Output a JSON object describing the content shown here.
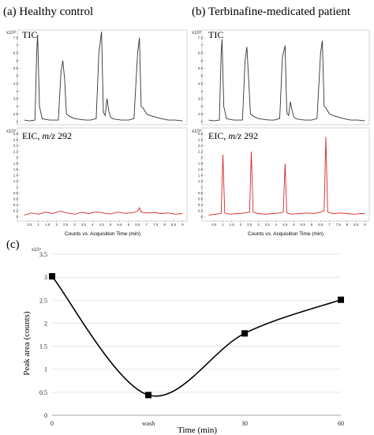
{
  "panels": [
    {
      "label": "(a) Healthy control",
      "tic": {
        "label": "TIC",
        "y_multiplier": "x10⁸",
        "y_ticks": [
          "2",
          "2.5",
          "3",
          "3.5",
          "4",
          "4.5",
          "5",
          "5.5",
          "6",
          "6.5",
          "7",
          "7.5"
        ],
        "ylim": [
          1.9,
          7.8
        ]
      },
      "eic": {
        "label_prefix": "EIC, ",
        "label_mz": "m/z",
        "label_value": " 292",
        "y_multiplier": "x10⁶",
        "y_ticks": [
          "0",
          "0.2",
          "0.4",
          "0.6",
          "0.8",
          "1",
          "1.2",
          "1.4",
          "1.6",
          "1.8",
          "2",
          "2.2",
          "2.4",
          "2.6",
          "2.8"
        ],
        "ylim": [
          -0.1,
          2.9
        ]
      },
      "x_ticks": [
        "0.5",
        "1",
        "1.5",
        "2",
        "2.5",
        "3",
        "3.5",
        "4",
        "4.5",
        "5",
        "5.5",
        "6",
        "6.5",
        "7",
        "7.5",
        "8",
        "8.5",
        "9"
      ],
      "xlabel": "Counts vs. Acquisition Time (min)"
    },
    {
      "label": "(b) Terbinafine-medicated patient",
      "tic": {
        "label": "TIC",
        "y_multiplier": "x10⁸",
        "y_ticks": [
          "2",
          "2.5",
          "3",
          "3.5",
          "4",
          "4.5",
          "5",
          "5.5",
          "6",
          "6.5",
          "7",
          "7.5"
        ],
        "ylim": [
          1.9,
          7.8
        ]
      },
      "eic": {
        "label_prefix": "EIC, ",
        "label_mz": "m/z",
        "label_value": " 292",
        "y_multiplier": "x10⁶",
        "y_ticks": [
          "0",
          "0.2",
          "0.4",
          "0.6",
          "0.8",
          "1",
          "1.2",
          "1.4",
          "1.6",
          "1.8",
          "2",
          "2.2",
          "2.4",
          "2.6",
          "2.8"
        ],
        "ylim": [
          -0.1,
          2.9
        ]
      },
      "x_ticks": [
        "0.5",
        "1",
        "1.5",
        "2",
        "2.5",
        "3",
        "3.5",
        "4",
        "4.5",
        "5",
        "5.5",
        "6",
        "6.5",
        "7",
        "7.5",
        "8",
        "8.5",
        "9"
      ],
      "xlabel": "Counts vs. Acquisition Time (min)"
    },
    {
      "label": "(c)"
    }
  ],
  "chart_data": [
    {
      "type": "line",
      "panel": "a",
      "trace": "TIC",
      "x": [
        0.2,
        0.5,
        0.8,
        0.9,
        0.95,
        1.05,
        1.2,
        1.4,
        1.6,
        1.9,
        2.1,
        2.25,
        2.35,
        2.45,
        2.55,
        2.8,
        3.0,
        3.3,
        3.6,
        3.9,
        4.2,
        4.35,
        4.5,
        4.6,
        4.7,
        4.8,
        4.9,
        5.0,
        5.1,
        5.3,
        5.6,
        6.0,
        6.3,
        6.5,
        6.6,
        6.7,
        6.8,
        6.9,
        7.0,
        7.2,
        7.5,
        7.8,
        8.2,
        8.6,
        9.0
      ],
      "y": [
        2.1,
        2.05,
        2.1,
        6.5,
        7.7,
        3.0,
        2.2,
        2.15,
        2.1,
        2.1,
        2.1,
        5.3,
        6.0,
        4.8,
        2.5,
        2.3,
        2.2,
        2.15,
        2.1,
        2.1,
        2.2,
        6.5,
        7.9,
        2.6,
        2.4,
        3.5,
        2.7,
        2.3,
        2.2,
        2.15,
        2.1,
        2.1,
        2.2,
        6.5,
        7.5,
        3.0,
        2.9,
        2.7,
        2.5,
        2.4,
        2.3,
        2.2,
        2.1,
        2.1,
        2.05
      ],
      "color": "#333333"
    },
    {
      "type": "line",
      "panel": "a",
      "trace": "EIC m/z 292",
      "x": [
        0.2,
        0.6,
        1.0,
        1.4,
        1.8,
        2.2,
        2.6,
        3.0,
        3.4,
        3.8,
        4.2,
        4.6,
        5.0,
        5.4,
        5.8,
        6.2,
        6.5,
        6.6,
        6.7,
        7.0,
        7.4,
        7.8,
        8.2,
        8.6,
        9.0
      ],
      "y": [
        0.05,
        0.12,
        0.08,
        0.15,
        0.1,
        0.18,
        0.12,
        0.08,
        0.14,
        0.1,
        0.16,
        0.12,
        0.09,
        0.15,
        0.11,
        0.13,
        0.18,
        0.3,
        0.15,
        0.12,
        0.14,
        0.1,
        0.12,
        0.08,
        0.1
      ],
      "color": "#d62728"
    },
    {
      "type": "line",
      "panel": "b",
      "trace": "TIC",
      "x": [
        0.2,
        0.5,
        0.8,
        0.9,
        0.95,
        1.05,
        1.2,
        1.4,
        1.6,
        1.9,
        2.1,
        2.25,
        2.35,
        2.45,
        2.55,
        2.8,
        3.0,
        3.3,
        3.6,
        3.9,
        4.2,
        4.35,
        4.5,
        4.6,
        4.7,
        4.8,
        4.9,
        5.0,
        5.1,
        5.3,
        5.6,
        6.0,
        6.3,
        6.5,
        6.6,
        6.7,
        6.8,
        6.9,
        7.0,
        7.2,
        7.5,
        7.8,
        8.2,
        8.6,
        9.0
      ],
      "y": [
        2.1,
        2.05,
        2.1,
        6.5,
        7.4,
        3.0,
        2.2,
        2.15,
        2.1,
        2.1,
        2.1,
        6.0,
        6.9,
        4.8,
        2.5,
        2.3,
        2.2,
        2.15,
        2.1,
        2.1,
        2.2,
        6.2,
        7.0,
        2.6,
        2.4,
        3.3,
        2.7,
        2.3,
        2.2,
        2.15,
        2.1,
        2.1,
        2.2,
        6.5,
        7.3,
        3.0,
        2.9,
        2.7,
        2.5,
        2.4,
        2.3,
        2.2,
        2.1,
        2.1,
        2.05
      ],
      "color": "#333333"
    },
    {
      "type": "line",
      "panel": "b",
      "trace": "EIC m/z 292",
      "x": [
        0.2,
        0.6,
        0.9,
        1.0,
        1.1,
        1.4,
        1.8,
        2.2,
        2.5,
        2.6,
        2.7,
        3.0,
        3.4,
        3.8,
        4.2,
        4.4,
        4.5,
        4.6,
        4.9,
        5.3,
        5.7,
        6.1,
        6.5,
        6.7,
        6.8,
        6.9,
        7.2,
        7.6,
        8.0,
        8.4,
        8.8,
        9.0
      ],
      "y": [
        0.05,
        0.08,
        0.1,
        2.1,
        0.12,
        0.08,
        0.1,
        0.12,
        0.15,
        2.2,
        0.15,
        0.1,
        0.08,
        0.1,
        0.12,
        0.15,
        1.8,
        0.12,
        0.08,
        0.1,
        0.12,
        0.1,
        0.15,
        0.2,
        2.7,
        0.15,
        0.1,
        0.12,
        0.1,
        0.08,
        0.1,
        0.1
      ],
      "color": "#d62728"
    },
    {
      "type": "line",
      "panel": "c",
      "categories": [
        "0",
        "wash",
        "30",
        "60"
      ],
      "values": [
        3.02,
        0.44,
        1.78,
        2.51
      ],
      "ylim": [
        0,
        3.5
      ],
      "y_ticks": [
        "0",
        "0.5",
        "1",
        "1.5",
        "2",
        "2.5",
        "3",
        "3.5"
      ],
      "y_multiplier": "x10⁴",
      "xlabel": "Time (min)",
      "ylabel": "Peak area (counts)",
      "grid": true,
      "color": "#000000"
    }
  ]
}
